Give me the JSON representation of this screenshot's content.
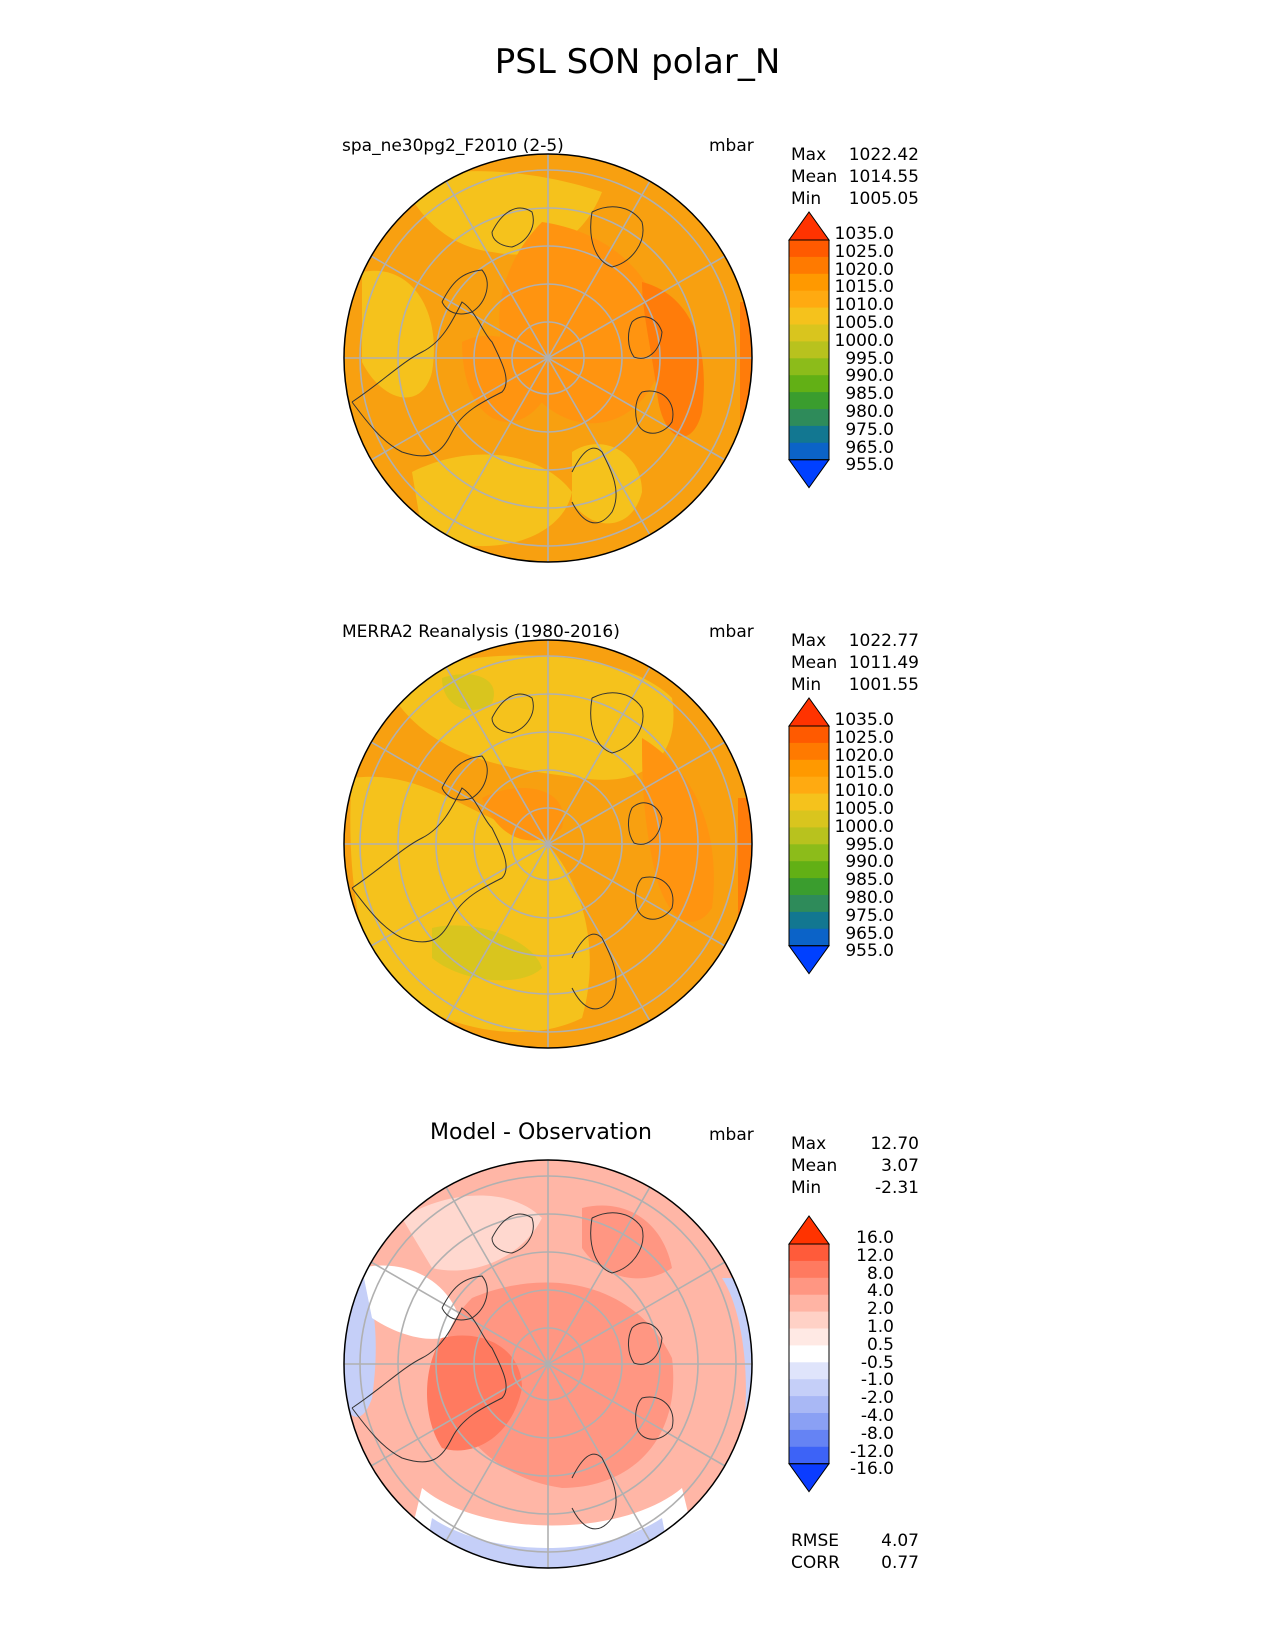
{
  "title": "PSL SON polar_N",
  "units": "mbar",
  "panels": [
    {
      "title": "spa_ne30pg2_F2010 (2-5)",
      "stats": [
        {
          "label": "Max",
          "value": "1022.42"
        },
        {
          "label": "Mean",
          "value": "1014.55"
        },
        {
          "label": "Min",
          "value": "1005.05"
        }
      ],
      "colorbar_ticks": [
        "1035.0",
        "1025.0",
        "1020.0",
        "1015.0",
        "1010.0",
        "1005.0",
        "1000.0",
        "995.0",
        "990.0",
        "985.0",
        "980.0",
        "975.0",
        "965.0",
        "955.0"
      ]
    },
    {
      "title": "MERRA2 Reanalysis (1980-2016)",
      "stats": [
        {
          "label": "Max",
          "value": "1022.77"
        },
        {
          "label": "Mean",
          "value": "1011.49"
        },
        {
          "label": "Min",
          "value": "1001.55"
        }
      ],
      "colorbar_ticks": [
        "1035.0",
        "1025.0",
        "1020.0",
        "1015.0",
        "1010.0",
        "1005.0",
        "1000.0",
        "995.0",
        "990.0",
        "985.0",
        "980.0",
        "975.0",
        "965.0",
        "955.0"
      ]
    },
    {
      "title": "Model - Observation",
      "stats": [
        {
          "label": "Max",
          "value": "12.70"
        },
        {
          "label": "Mean",
          "value": "3.07"
        },
        {
          "label": "Min",
          "value": "-2.31"
        }
      ],
      "colorbar_ticks": [
        "16.0",
        "12.0",
        "8.0",
        "4.0",
        "2.0",
        "1.0",
        "0.5",
        "-0.5",
        "-1.0",
        "-2.0",
        "-4.0",
        "-8.0",
        "-12.0",
        "-16.0"
      ],
      "metrics": [
        {
          "label": "RMSE",
          "value": "4.07"
        },
        {
          "label": "CORR",
          "value": "0.77"
        }
      ]
    }
  ],
  "colors": {
    "abs_colorbar": [
      "#ff3300",
      "#ff5a00",
      "#ff7a00",
      "#ff9900",
      "#ffaa11",
      "#f5c21c",
      "#d9c51e",
      "#b8c21e",
      "#8cbc1a",
      "#62b015",
      "#3a9d2e",
      "#2e8b5a",
      "#127791",
      "#0b63c8",
      "#0040ff"
    ],
    "diff_colorbar": [
      "#ff3300",
      "#ff5b3a",
      "#ff7a60",
      "#ff9682",
      "#ffb4a4",
      "#ffd1c6",
      "#ffe9e4",
      "#ffffff",
      "#dfe4fb",
      "#c5cff8",
      "#a9b8f5",
      "#8aa0f4",
      "#6583f4",
      "#3d63f7",
      "#0b3cff"
    ],
    "abs_fill": [
      "#f8a010",
      "#ff9410",
      "#f5c21c",
      "#ff7c0a",
      "#d9c51e"
    ],
    "diff_fill": [
      "#ffb6a6",
      "#ff9682",
      "#ff7a60",
      "#c5cff8",
      "#ffffff",
      "#ffd8cf"
    ]
  }
}
